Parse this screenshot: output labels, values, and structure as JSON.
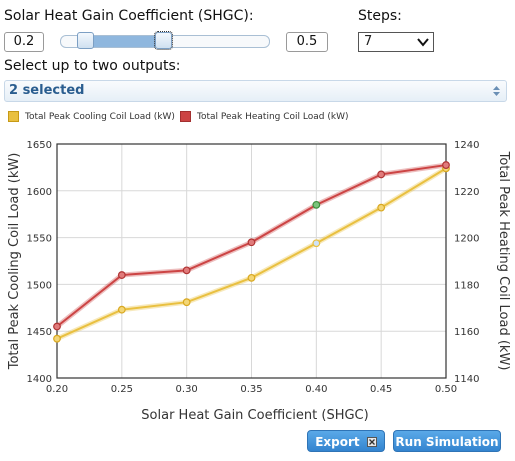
{
  "controls": {
    "sghc_label": "Solar Heat Gain Coefficient (SHGC):",
    "range_min": "0.2",
    "range_max": "0.5",
    "steps_label": "Steps:",
    "steps_value": "7",
    "outputs_label": "Select up to two outputs:",
    "outputs_selected": "2 selected"
  },
  "legend": {
    "cooling": "Total Peak Cooling Coil Load (kW)",
    "heating": "Total Peak Heating Coil Load (kW)"
  },
  "colors": {
    "cooling": "#e9c040",
    "heating": "#cc4444"
  },
  "buttons": {
    "export": "Export",
    "run": "Run Simulation"
  },
  "chart_data": {
    "type": "line",
    "x": [
      0.2,
      0.25,
      0.3,
      0.35,
      0.4,
      0.45,
      0.5
    ],
    "x_ticks": [
      "0.20",
      "0.25",
      "0.30",
      "0.35",
      "0.40",
      "0.45",
      "0.50"
    ],
    "xlabel": "Solar Heat Gain Coefficient (SHGC)",
    "ylabel_left": "Total Peak Cooling Coil Load (kW)",
    "ylabel_right": "Total Peak Heating Coil Load (kW)",
    "ylim_left": [
      1400,
      1650
    ],
    "yticks_left": [
      "1650",
      "1600",
      "1550",
      "1500",
      "1450",
      "1400"
    ],
    "ylim_right": [
      1140,
      1240
    ],
    "yticks_right": [
      "1240",
      "1220",
      "1200",
      "1180",
      "1160",
      "1140"
    ],
    "grid": true,
    "series": [
      {
        "name": "Total Peak Cooling Coil Load (kW)",
        "axis": "left",
        "values": [
          1442,
          1473,
          1481,
          1507,
          1544,
          1582,
          1624
        ]
      },
      {
        "name": "Total Peak Heating Coil Load (kW)",
        "axis": "right",
        "values": [
          1162,
          1184,
          1186,
          1198,
          1214,
          1227,
          1231
        ]
      }
    ]
  }
}
